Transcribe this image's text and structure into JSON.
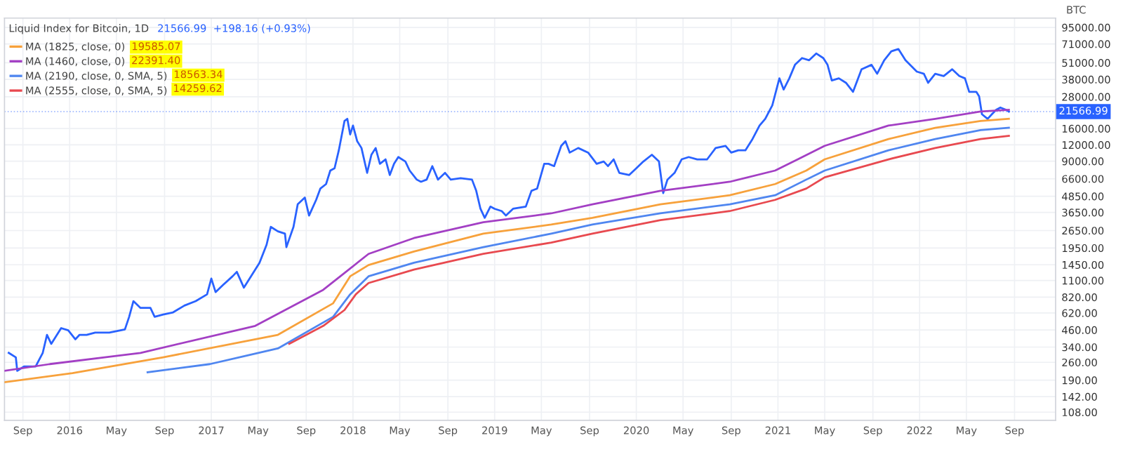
{
  "chart_data": {
    "type": "line",
    "title": "Liquid Index for Bitcoin, 1D",
    "subtitle": "21566.99  +198.16 (+0.93%)",
    "ylabel": "BTC",
    "log": "y",
    "grid": true,
    "legend": "top left",
    "line_style": "solid",
    "marker": "none",
    "annotations": [
      "19585.07",
      "22391.40",
      "18563.34",
      "14259.62"
    ],
    "xlim": [
      2015.54,
      2022.96
    ],
    "ylim": [
      93.5,
      112000
    ],
    "xticks": [
      {
        "value": 2015.67,
        "label": "Sep"
      },
      {
        "value": 2016,
        "label": "2016"
      },
      {
        "value": 2016.33,
        "label": "May"
      },
      {
        "value": 2016.67,
        "label": "Sep"
      },
      {
        "value": 2017,
        "label": "2017"
      },
      {
        "value": 2017.33,
        "label": "May"
      },
      {
        "value": 2017.67,
        "label": "Sep"
      },
      {
        "value": 2018,
        "label": "2018"
      },
      {
        "value": 2018.33,
        "label": "May"
      },
      {
        "value": 2018.67,
        "label": "Sep"
      },
      {
        "value": 2019,
        "label": "2019"
      },
      {
        "value": 2019.33,
        "label": "May"
      },
      {
        "value": 2019.67,
        "label": "Sep"
      },
      {
        "value": 2020,
        "label": "2020"
      },
      {
        "value": 2020.33,
        "label": "May"
      },
      {
        "value": 2020.67,
        "label": "Sep"
      },
      {
        "value": 2021,
        "label": "2021"
      },
      {
        "value": 2021.33,
        "label": "May"
      },
      {
        "value": 2021.67,
        "label": "Sep"
      },
      {
        "value": 2022,
        "label": "2022"
      },
      {
        "value": 2022.33,
        "label": "May"
      },
      {
        "value": 2022.67,
        "label": "Sep"
      }
    ],
    "yticks": [
      {
        "value": 95000,
        "label": "95000.00"
      },
      {
        "value": 71000,
        "label": "71000.00"
      },
      {
        "value": 51000,
        "label": "51000.00"
      },
      {
        "value": 38000,
        "label": "38000.00"
      },
      {
        "value": 28000,
        "label": "28000.00"
      },
      {
        "value": 16000,
        "label": "16000.00"
      },
      {
        "value": 12000,
        "label": "12000.00"
      },
      {
        "value": 9000,
        "label": "9000.00"
      },
      {
        "value": 6600,
        "label": "6600.00"
      },
      {
        "value": 4850,
        "label": "4850.00"
      },
      {
        "value": 3650,
        "label": "3650.00"
      },
      {
        "value": 2650,
        "label": "2650.00"
      },
      {
        "value": 1950,
        "label": "1950.00"
      },
      {
        "value": 1450,
        "label": "1450.00"
      },
      {
        "value": 1100,
        "label": "1100.00"
      },
      {
        "value": 820,
        "label": "820.00"
      },
      {
        "value": 620,
        "label": "620.00"
      },
      {
        "value": 460,
        "label": "460.00"
      },
      {
        "value": 340,
        "label": "340.00"
      },
      {
        "value": 260,
        "label": "260.00"
      },
      {
        "value": 190,
        "label": "190.00"
      },
      {
        "value": 142,
        "label": "142.00"
      },
      {
        "value": 108,
        "label": "108.00"
      }
    ],
    "ref_lines": [
      {
        "axis": "y",
        "value": 21566.99,
        "label": "21566.99",
        "color": "#2962ff",
        "line_style": "dotted"
      }
    ],
    "series": [
      {
        "color": "#2962ff",
        "x": [
          2015.57,
          2015.62,
          2015.63,
          2015.68,
          2015.76,
          2015.81,
          2015.84,
          2015.87,
          2015.94,
          2015.99,
          2016.04,
          2016.07,
          2016.12,
          2016.18,
          2016.28,
          2016.39,
          2016.42,
          2016.45,
          2016.5,
          2016.57,
          2016.6,
          2016.66,
          2016.73,
          2016.81,
          2016.89,
          2016.97,
          2017.0,
          2017.03,
          2017.08,
          2017.15,
          2017.18,
          2017.23,
          2017.28,
          2017.34,
          2017.39,
          2017.42,
          2017.47,
          2017.52,
          2017.53,
          2017.58,
          2017.61,
          2017.66,
          2017.69,
          2017.74,
          2017.77,
          2017.81,
          2017.84,
          2017.87,
          2017.9,
          2017.94,
          2017.96,
          2017.98,
          2018.0,
          2018.03,
          2018.06,
          2018.1,
          2018.13,
          2018.16,
          2018.19,
          2018.23,
          2018.26,
          2018.29,
          2018.32,
          2018.37,
          2018.4,
          2018.45,
          2018.48,
          2018.52,
          2018.56,
          2018.6,
          2018.65,
          2018.69,
          2018.76,
          2018.84,
          2018.87,
          2018.9,
          2018.93,
          2018.97,
          2019.0,
          2019.05,
          2019.08,
          2019.13,
          2019.22,
          2019.26,
          2019.3,
          2019.35,
          2019.38,
          2019.42,
          2019.47,
          2019.5,
          2019.53,
          2019.59,
          2019.66,
          2019.72,
          2019.77,
          2019.8,
          2019.84,
          2019.88,
          2019.95,
          2020.0,
          2020.05,
          2020.11,
          2020.16,
          2020.19,
          2020.22,
          2020.27,
          2020.32,
          2020.37,
          2020.43,
          2020.5,
          2020.56,
          2020.63,
          2020.67,
          2020.72,
          2020.77,
          2020.82,
          2020.87,
          2020.91,
          2020.96,
          2021.01,
          2021.04,
          2021.08,
          2021.12,
          2021.17,
          2021.22,
          2021.27,
          2021.32,
          2021.35,
          2021.38,
          2021.43,
          2021.48,
          2021.53,
          2021.59,
          2021.66,
          2021.7,
          2021.75,
          2021.8,
          2021.85,
          2021.9,
          2021.98,
          2022.03,
          2022.06,
          2022.11,
          2022.17,
          2022.23,
          2022.28,
          2022.32,
          2022.35,
          2022.4,
          2022.42,
          2022.44,
          2022.48,
          2022.51,
          2022.54,
          2022.57,
          2022.61,
          2022.63
        ],
        "values": [
          307,
          284,
          224,
          242,
          242,
          307,
          422,
          360,
          475,
          457,
          390,
          422,
          422,
          439,
          439,
          464,
          580,
          764,
          678,
          678,
          580,
          603,
          627,
          707,
          764,
          861,
          1137,
          896,
          1010,
          1184,
          1280,
          969,
          1184,
          1502,
          2062,
          2828,
          2615,
          2511,
          1979,
          2828,
          4209,
          4740,
          3453,
          4553,
          5558,
          6013,
          7627,
          7943,
          10900,
          18260,
          18970,
          14400,
          16850,
          12780,
          11350,
          7325,
          10080,
          11350,
          8594,
          9293,
          7053,
          8594,
          9676,
          8946,
          7627,
          6505,
          6261,
          6505,
          8250,
          6505,
          7325,
          6505,
          6661,
          6505,
          5339,
          3890,
          3316,
          4042,
          3890,
          3736,
          3453,
          3890,
          4042,
          5339,
          5558,
          8594,
          8594,
          8250,
          11790,
          12780,
          10470,
          11350,
          10470,
          8594,
          8946,
          8250,
          9293,
          7325,
          7053,
          7943,
          8946,
          10080,
          8946,
          5127,
          6505,
          7325,
          9293,
          9676,
          9293,
          9293,
          11350,
          11790,
          10470,
          10900,
          10900,
          13280,
          16850,
          18970,
          24070,
          38740,
          31800,
          38740,
          49150,
          55360,
          53300,
          60030,
          55360,
          49150,
          37300,
          38740,
          35810,
          30530,
          45440,
          49150,
          42010,
          53300,
          62350,
          64930,
          53300,
          43630,
          42010,
          35810,
          42010,
          40340,
          45440,
          40340,
          38740,
          30530,
          30530,
          28230,
          20570,
          18970,
          20570,
          22250,
          23170,
          22250,
          21566.99
        ]
      },
      {
        "name": "MA (1825, close, 0)",
        "color": "#f7a13b",
        "x": [
          2015.54,
          2016.02,
          2016.66,
          2017.47,
          2017.86,
          2017.98,
          2018.11,
          2018.43,
          2018.92,
          2019.4,
          2019.69,
          2020.17,
          2020.66,
          2020.98,
          2021.2,
          2021.33,
          2021.78,
          2022.11,
          2022.43,
          2022.63
        ],
        "values": [
          183,
          215,
          284,
          422,
          736,
          1184,
          1443,
          1830,
          2511,
          2945,
          3316,
          4209,
          4935,
          6013,
          7627,
          9293,
          13280,
          16210,
          18260,
          18970
        ]
      },
      {
        "name": "MA (1460, close, 0)",
        "color": "#a33fc4",
        "x": [
          2015.54,
          2015.86,
          2016.5,
          2017.31,
          2017.79,
          2017.95,
          2018.11,
          2018.43,
          2018.92,
          2019.4,
          2019.69,
          2020.17,
          2020.66,
          2020.98,
          2021.14,
          2021.33,
          2021.78,
          2022.11,
          2022.43,
          2022.63
        ],
        "values": [
          224,
          252,
          307,
          494,
          933,
          1280,
          1757,
          2321,
          3066,
          3588,
          4209,
          5339,
          6261,
          7627,
          9293,
          11790,
          16850,
          18970,
          21570,
          22250
        ]
      },
      {
        "name": "MA (2190, close, 0, SMA, 5)",
        "color": "#4f86f0",
        "x": [
          2016.55,
          2016.99,
          2017.47,
          2017.86,
          2017.98,
          2018.11,
          2018.43,
          2018.92,
          2019.4,
          2019.69,
          2020.17,
          2020.66,
          2020.98,
          2021.2,
          2021.33,
          2021.78,
          2022.11,
          2022.43,
          2022.63
        ],
        "values": [
          218,
          252,
          332,
          580,
          861,
          1184,
          1502,
          1979,
          2511,
          2945,
          3588,
          4209,
          4935,
          6505,
          7627,
          10900,
          13280,
          15570,
          16210
        ]
      },
      {
        "name": "MA (2555, close, 0, SMA, 5)",
        "color": "#e8494f",
        "x": [
          2017.55,
          2017.79,
          2017.94,
          2018.02,
          2018.11,
          2018.43,
          2018.92,
          2019.4,
          2019.69,
          2020.17,
          2020.66,
          2020.98,
          2021.2,
          2021.33,
          2021.78,
          2022.11,
          2022.43,
          2022.63
        ],
        "values": [
          360,
          494,
          653,
          861,
          1051,
          1333,
          1757,
          2146,
          2511,
          3185,
          3736,
          4553,
          5558,
          6772,
          9293,
          11350,
          13280,
          14060
        ]
      }
    ]
  }
}
